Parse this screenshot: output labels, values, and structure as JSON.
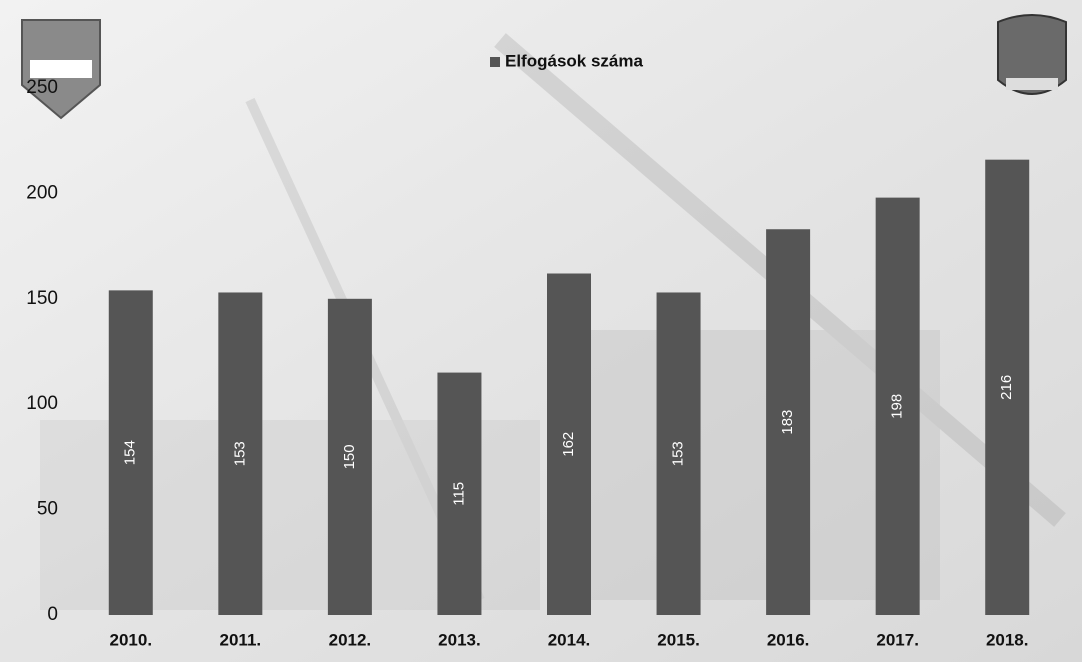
{
  "chart_data": {
    "type": "bar",
    "categories": [
      "2010.",
      "2011.",
      "2012.",
      "2013.",
      "2014.",
      "2015.",
      "2016.",
      "2017.",
      "2018."
    ],
    "series": [
      {
        "name": "Elfogások száma",
        "color": "#555555",
        "values": [
          154,
          153,
          150,
          115,
          162,
          153,
          183,
          198,
          216
        ]
      }
    ],
    "ylim": [
      0,
      250
    ],
    "yticks": [
      0,
      50,
      100,
      150,
      200,
      250
    ],
    "grid": false,
    "legend": "top",
    "data_labels": true
  }
}
